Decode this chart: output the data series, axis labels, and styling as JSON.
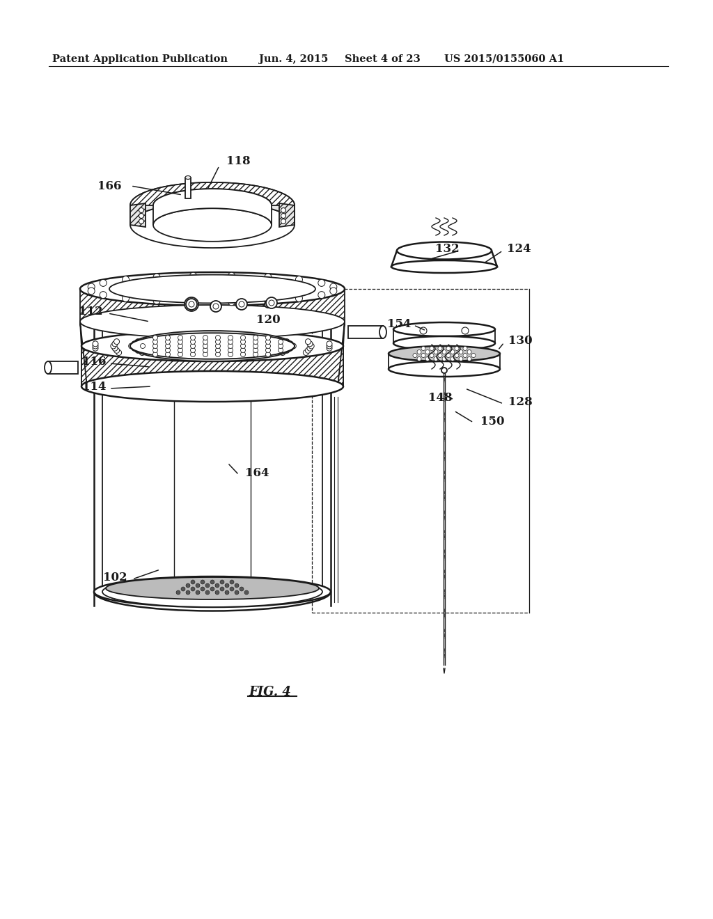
{
  "bg_color": "#ffffff",
  "header_text": "Patent Application Publication",
  "header_date": "Jun. 4, 2015",
  "header_sheet": "Sheet 4 of 23",
  "header_patent": "US 2015/0155060 A1",
  "figure_label": "FIG. 4",
  "line_color": "#1a1a1a",
  "hatch_color": "#1a1a1a"
}
